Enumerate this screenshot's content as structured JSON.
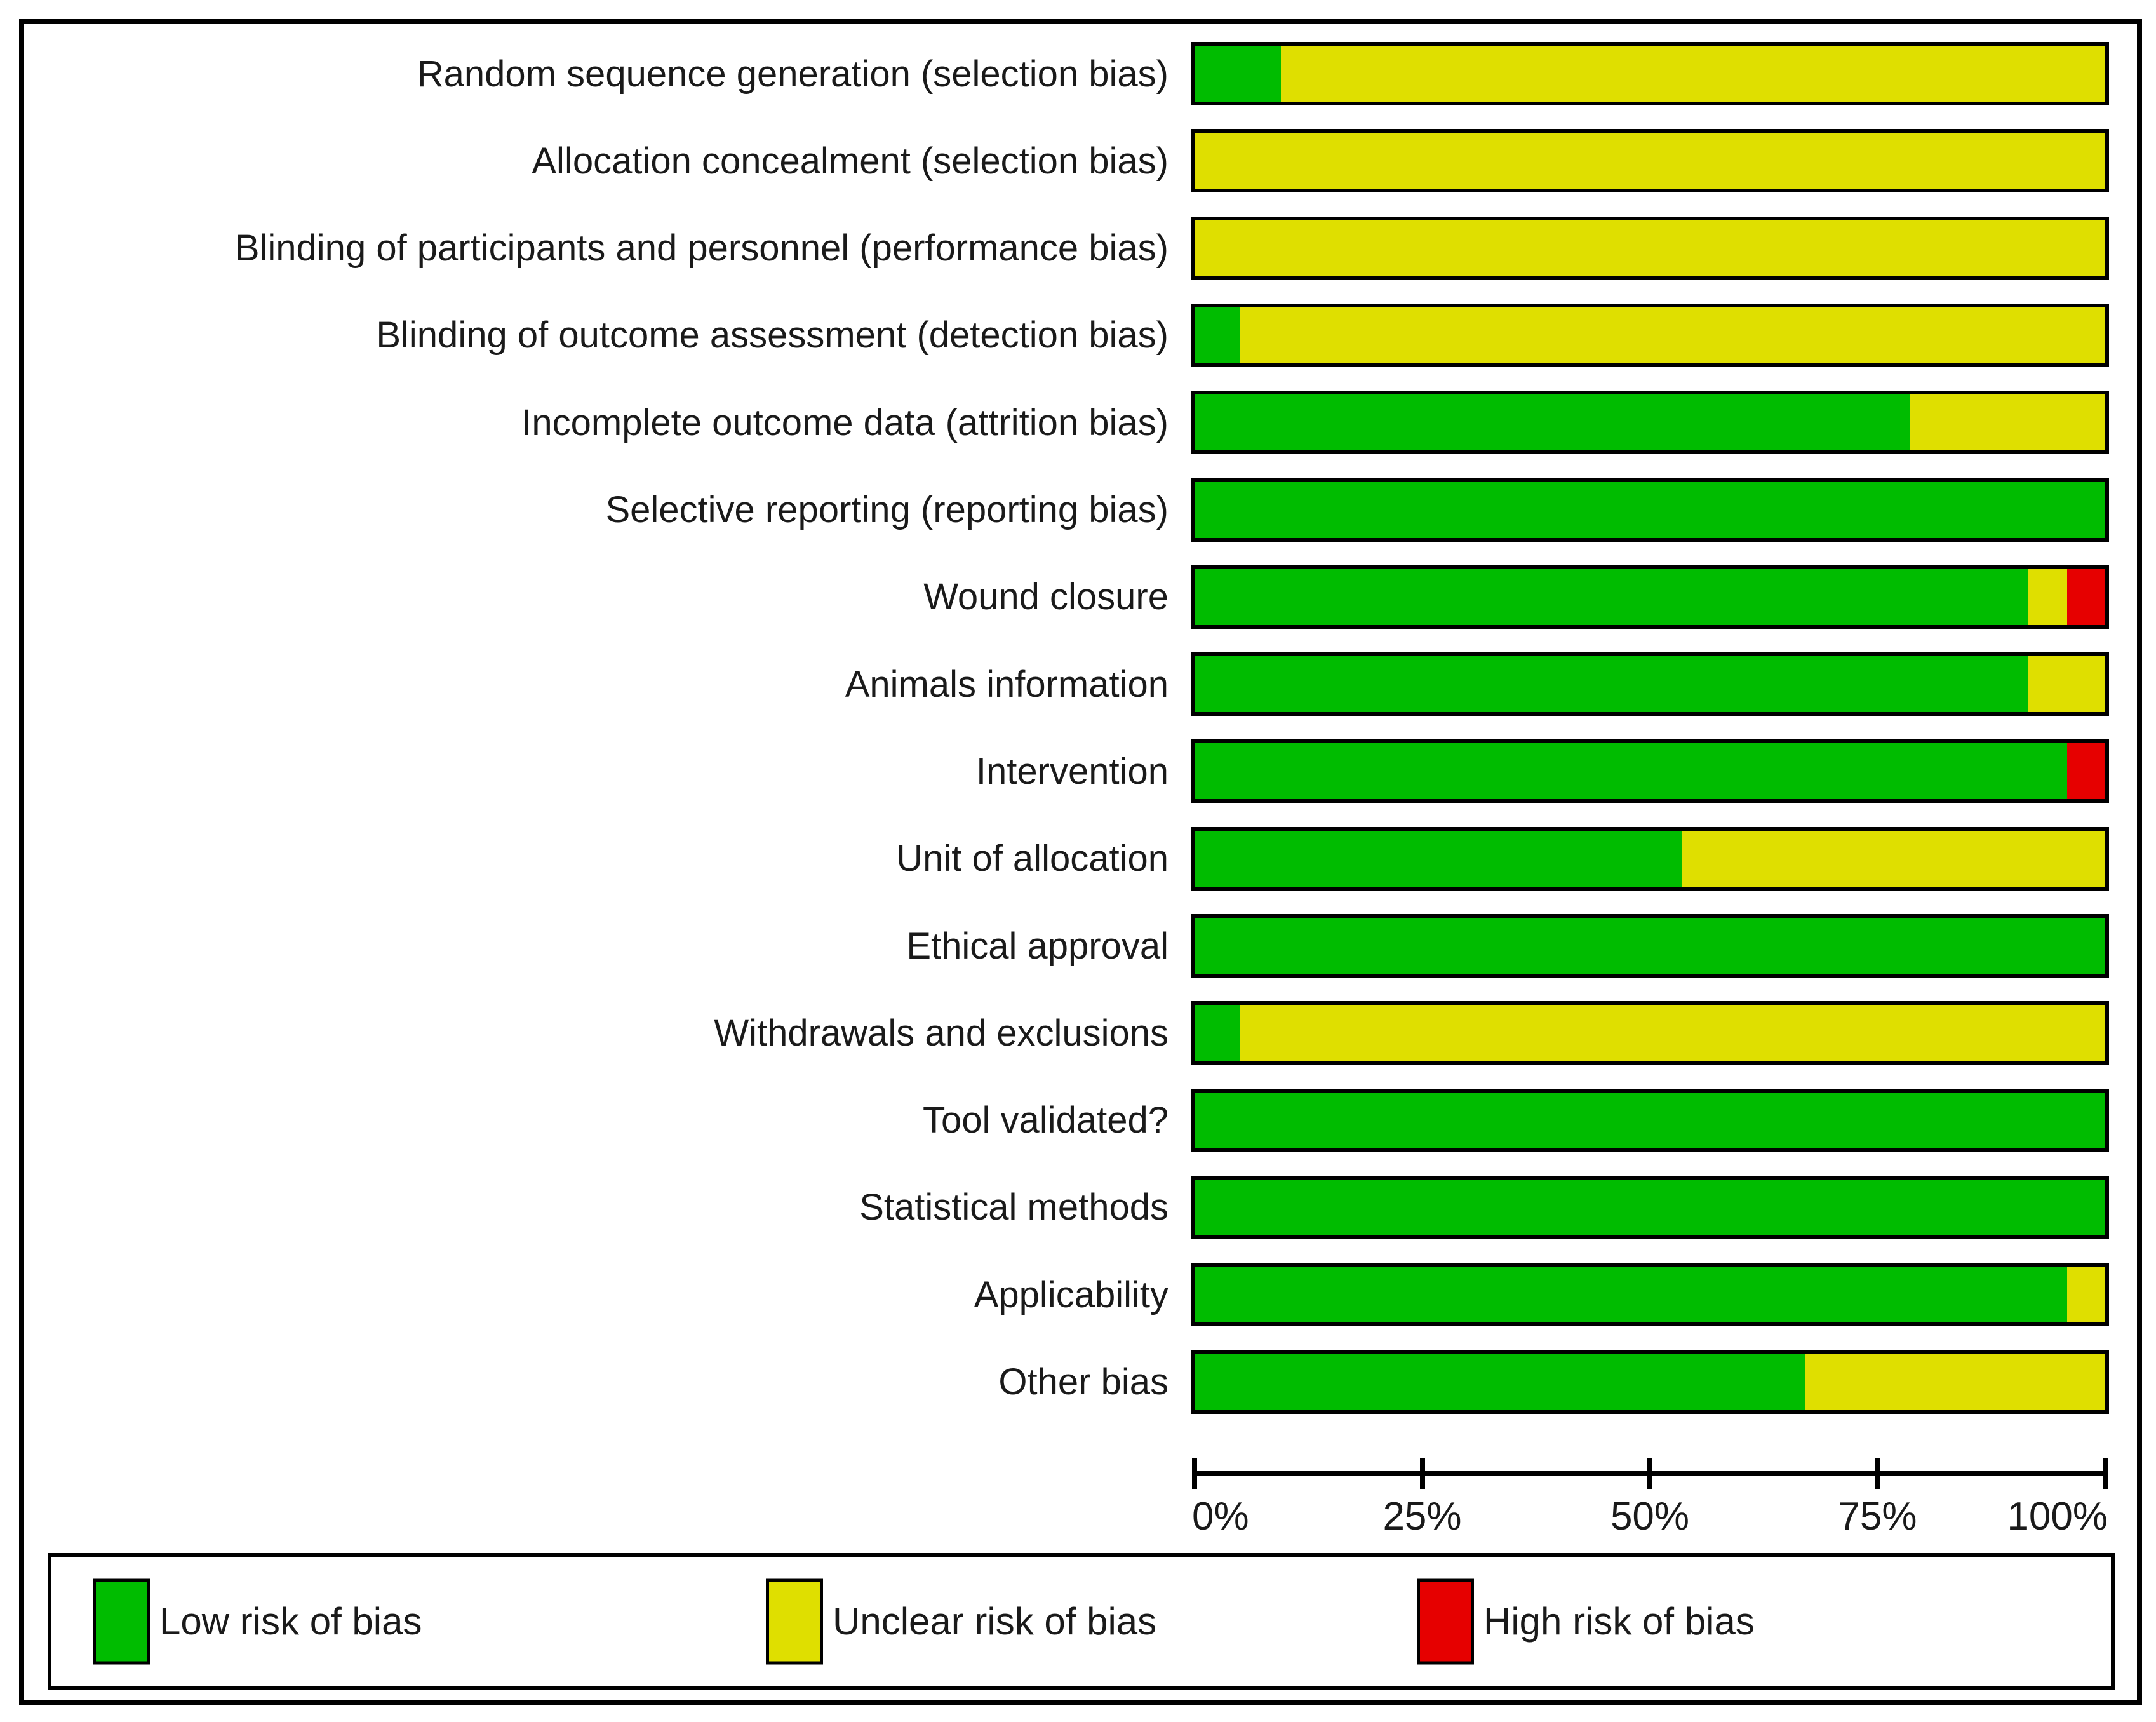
{
  "figure": {
    "kind": "risk-of-bias-graph"
  },
  "chart_data": {
    "type": "bar",
    "orientation": "horizontal",
    "stacked": true,
    "unit": "percent",
    "title": "",
    "xlabel": "",
    "ylabel": "",
    "xlim": [
      0,
      100
    ],
    "grid": false,
    "legend_position": "bottom",
    "categories": [
      "Random sequence generation (selection bias)",
      "Allocation concealment (selection bias)",
      "Blinding of participants and personnel (performance bias)",
      "Blinding of outcome assessment (detection bias)",
      "Incomplete outcome data (attrition bias)",
      "Selective reporting (reporting bias)",
      "Wound closure",
      "Animals information",
      "Intervention",
      "Unit of allocation",
      "Ethical approval",
      "Withdrawals and exclusions",
      "Tool validated?",
      "Statistical methods",
      "Applicability",
      "Other bias"
    ],
    "series": [
      {
        "name": "Low risk of bias",
        "color": "#00BC00",
        "values": [
          9.5,
          0,
          0,
          5,
          78.5,
          100,
          91.5,
          91.5,
          95.8,
          53.5,
          100,
          5,
          100,
          100,
          95.8,
          67
        ]
      },
      {
        "name": "Unclear risk of bias",
        "color": "#DFDF00",
        "values": [
          90.5,
          100,
          100,
          95,
          21.5,
          0,
          4.3,
          8.5,
          0,
          46.5,
          0,
          95,
          0,
          0,
          4.2,
          33
        ]
      },
      {
        "name": "High risk of bias",
        "color": "#E60000",
        "values": [
          0,
          0,
          0,
          0,
          0,
          0,
          4.2,
          0,
          4.2,
          0,
          0,
          0,
          0,
          0,
          0,
          0
        ]
      }
    ]
  },
  "axis": {
    "ticks": [
      {
        "label": "0%",
        "value": 0
      },
      {
        "label": "25%",
        "value": 25
      },
      {
        "label": "50%",
        "value": 50
      },
      {
        "label": "75%",
        "value": 75
      },
      {
        "label": "100%",
        "value": 100
      }
    ]
  },
  "legend": {
    "items": [
      {
        "label": "Low risk of bias",
        "color": "#00BC00"
      },
      {
        "label": "Unclear risk of bias",
        "color": "#DFDF00"
      },
      {
        "label": "High risk of bias",
        "color": "#E60000"
      }
    ]
  }
}
